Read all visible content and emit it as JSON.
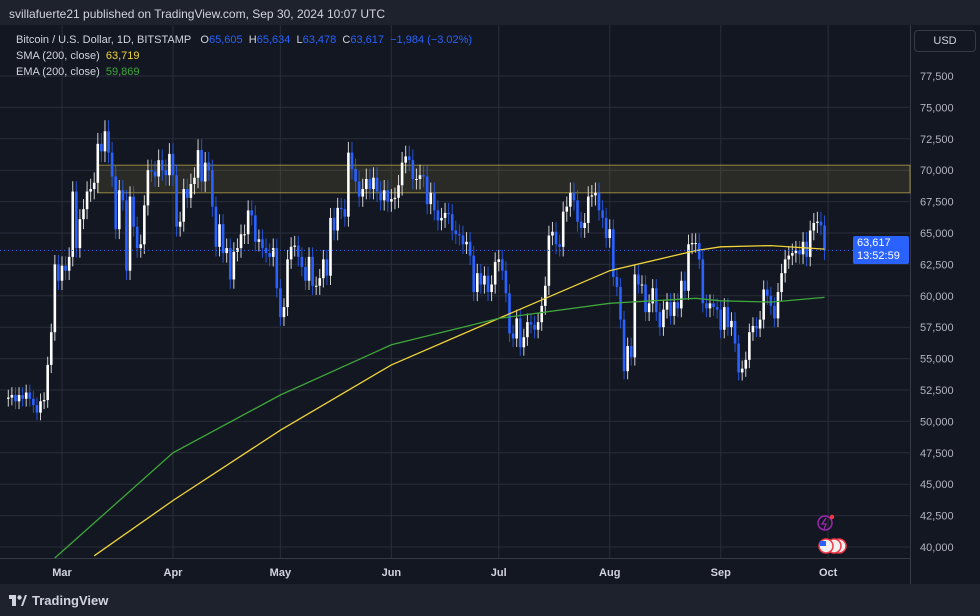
{
  "header": {
    "publisher": "svillafuerte21 published on TradingView.com, Sep 30, 2024 10:07 UTC"
  },
  "legend": {
    "symbol": "Bitcoin / U.S. Dollar, 1D, BITSTAMP",
    "o_label": "O",
    "o": "65,605",
    "h_label": "H",
    "h": "65,634",
    "l_label": "L",
    "l": "63,478",
    "c_label": "C",
    "c": "63,617",
    "change": "−1,984 (−3.02%)",
    "sma_label": "SMA (200, close)",
    "sma_value": "63,719",
    "ema_label": "EMA (200, close)",
    "ema_value": "59,869"
  },
  "axis": {
    "currency_button": "USD",
    "last_price": "63,617",
    "countdown": "13:52:59"
  },
  "footer": {
    "brand": "TradingView"
  },
  "colors": {
    "up": "#ffffff",
    "down": "#2962ff",
    "sma": "#f0d43a",
    "ema": "#3fa63a",
    "zone": "#c9b44a",
    "background": "#131722"
  },
  "chart_data": {
    "type": "candlestick",
    "start_date": "2024-02-15",
    "interval": "1D",
    "first_open": 51.8,
    "closes_thousands_usd": [
      51.9,
      52.1,
      51.6,
      52.1,
      51.8,
      52.3,
      51.8,
      51.3,
      50.7,
      51.6,
      51.7,
      54.5,
      57.1,
      62.5,
      61.2,
      62.4,
      62.0,
      63.1,
      68.3,
      63.8,
      66.1,
      66.9,
      68.3,
      68.5,
      69.0,
      72.1,
      71.5,
      73.1,
      71.4,
      69.5,
      65.3,
      68.4,
      67.6,
      62.0,
      67.9,
      65.5,
      63.8,
      64.1,
      67.2,
      70.0,
      69.9,
      69.5,
      70.8,
      70.0,
      69.6,
      71.3,
      69.6,
      65.5,
      65.9,
      68.5,
      67.8,
      68.9,
      69.4,
      71.6,
      69.1,
      70.6,
      70.0,
      67.1,
      63.9,
      65.7,
      63.4,
      63.8,
      61.3,
      63.5,
      63.8,
      64.9,
      64.9,
      66.8,
      66.4,
      64.3,
      64.5,
      63.8,
      63.4,
      63.1,
      63.8,
      60.6,
      58.3,
      59.1,
      62.9,
      63.9,
      64.0,
      63.1,
      62.3,
      61.2,
      63.1,
      60.8,
      60.8,
      61.4,
      62.9,
      61.6,
      66.2,
      65.2,
      67.0,
      66.9,
      66.3,
      71.4,
      70.1,
      69.1,
      67.9,
      68.5,
      69.3,
      68.5,
      69.4,
      68.3,
      67.6,
      68.4,
      67.5,
      67.7,
      67.8,
      68.8,
      70.6,
      71.1,
      70.8,
      69.3,
      69.3,
      69.6,
      69.5,
      67.3,
      68.2,
      66.8,
      66.0,
      66.2,
      66.6,
      66.5,
      65.2,
      64.9,
      64.8,
      64.1,
      64.3,
      63.2,
      60.3,
      61.8,
      60.9,
      61.6,
      60.3,
      60.9,
      62.7,
      62.9,
      62.0,
      60.2,
      57.0,
      56.6,
      58.2,
      55.9,
      56.7,
      57.9,
      57.7,
      57.3,
      57.9,
      59.2,
      60.8,
      64.8,
      65.1,
      64.1,
      63.9,
      66.7,
      67.1,
      68.2,
      67.6,
      65.9,
      65.4,
      65.8,
      67.9,
      68.0,
      68.2,
      66.8,
      66.2,
      64.6,
      65.3,
      61.5,
      60.7,
      58.1,
      54.0,
      56.0,
      55.1,
      61.7,
      60.9,
      60.9,
      58.7,
      59.4,
      60.6,
      58.7,
      57.5,
      58.9,
      59.5,
      58.4,
      59.5,
      59.0,
      61.2,
      60.4,
      64.1,
      64.2,
      64.2,
      62.9,
      59.4,
      59.0,
      59.4,
      59.1,
      58.9,
      57.3,
      59.1,
      57.5,
      58.0,
      56.2,
      53.9,
      54.2,
      54.9,
      57.1,
      57.6,
      57.4,
      58.1,
      60.5,
      60.0,
      59.2,
      58.2,
      60.3,
      61.8,
      62.9,
      63.2,
      63.4,
      63.6,
      63.3,
      64.3,
      63.1,
      65.2,
      65.8,
      65.9,
      65.6,
      63.6
    ],
    "sma200": [
      [
        "2024-03-10",
        39.3
      ],
      [
        "2024-04-01",
        43.7
      ],
      [
        "2024-05-01",
        49.3
      ],
      [
        "2024-06-01",
        54.5
      ],
      [
        "2024-07-01",
        58.2
      ],
      [
        "2024-08-01",
        62.0
      ],
      [
        "2024-08-25",
        63.6
      ],
      [
        "2024-09-01",
        63.9
      ],
      [
        "2024-09-15",
        64.0
      ],
      [
        "2024-09-30",
        63.72
      ]
    ],
    "ema200": [
      [
        "2024-02-28",
        39.1
      ],
      [
        "2024-04-01",
        47.5
      ],
      [
        "2024-05-01",
        52.1
      ],
      [
        "2024-06-01",
        56.1
      ],
      [
        "2024-07-01",
        58.2
      ],
      [
        "2024-08-01",
        59.4
      ],
      [
        "2024-08-25",
        59.8
      ],
      [
        "2024-09-01",
        59.6
      ],
      [
        "2024-09-15",
        59.5
      ],
      [
        "2024-09-30",
        59.87
      ]
    ],
    "resistance_zone": [
      68200,
      70400
    ],
    "y_ticks": [
      "40,000",
      "42,500",
      "45,000",
      "47,500",
      "50,000",
      "52,500",
      "55,000",
      "57,500",
      "60,000",
      "62,500",
      "65,000",
      "67,500",
      "70,000",
      "72,500",
      "75,000",
      "77,500"
    ],
    "x_ticks": [
      "Mar",
      "Apr",
      "May",
      "Jun",
      "Jul",
      "Aug",
      "Sep",
      "Oct"
    ],
    "ylim": [
      38800,
      79000
    ],
    "grid": true
  }
}
